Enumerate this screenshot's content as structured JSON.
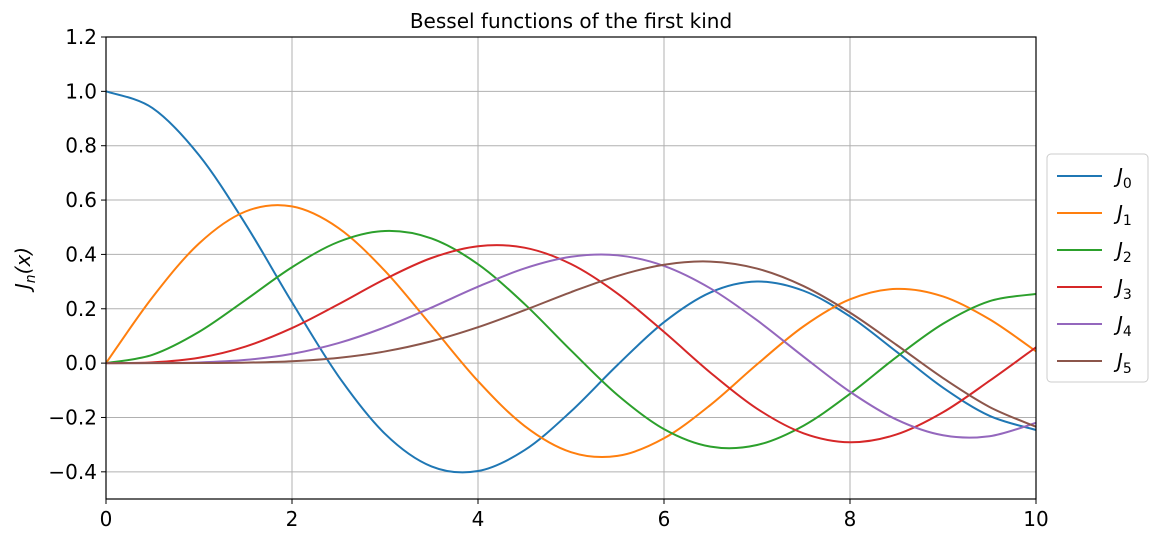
{
  "chart_data": {
    "type": "line",
    "title": "Bessel functions of the first kind",
    "xlabel": "",
    "ylabel": {
      "main": "J",
      "sub": "n",
      "suffix": "(x)"
    },
    "xlim": [
      0,
      10
    ],
    "ylim": [
      -0.5,
      1.2
    ],
    "xticks": [
      0,
      2,
      4,
      6,
      8,
      10
    ],
    "xtick_labels": [
      "0",
      "2",
      "4",
      "6",
      "8",
      "10"
    ],
    "yticks": [
      -0.4,
      -0.2,
      0.0,
      0.2,
      0.4,
      0.6,
      0.8,
      1.0,
      1.2
    ],
    "ytick_labels": [
      "−0.4",
      "−0.2",
      "0.0",
      "0.2",
      "0.4",
      "0.6",
      "0.8",
      "1.0",
      "1.2"
    ],
    "grid": true,
    "legend_position": "outside-right-center",
    "x": [
      0,
      0.5,
      1,
      1.5,
      2,
      2.5,
      3,
      3.5,
      4,
      4.5,
      5,
      5.5,
      6,
      6.5,
      7,
      7.5,
      8,
      8.5,
      9,
      9.5,
      10
    ],
    "series": [
      {
        "name": "J",
        "sub": "0",
        "color": "#1f77b4",
        "values": [
          1.0,
          0.9385,
          0.7652,
          0.5118,
          0.2239,
          -0.0484,
          -0.2601,
          -0.3801,
          -0.3971,
          -0.3205,
          -0.1776,
          -0.0068,
          0.1506,
          0.2601,
          0.3001,
          0.2663,
          0.1717,
          0.0419,
          -0.0903,
          -0.1939,
          -0.2459
        ]
      },
      {
        "name": "J",
        "sub": "1",
        "color": "#ff7f0e",
        "values": [
          0.0,
          0.2423,
          0.4401,
          0.5579,
          0.5767,
          0.4971,
          0.3391,
          0.1374,
          -0.066,
          -0.2311,
          -0.3276,
          -0.3414,
          -0.2767,
          -0.1538,
          -0.0047,
          0.1352,
          0.2346,
          0.2731,
          0.2453,
          0.1613,
          0.0435
        ]
      },
      {
        "name": "J",
        "sub": "2",
        "color": "#2ca02c",
        "values": [
          0.0,
          0.0306,
          0.1149,
          0.2321,
          0.3528,
          0.4461,
          0.4861,
          0.4586,
          0.3641,
          0.2178,
          0.0466,
          -0.1173,
          -0.2429,
          -0.3074,
          -0.3014,
          -0.2303,
          -0.113,
          0.0223,
          0.1448,
          0.2279,
          0.2546
        ]
      },
      {
        "name": "J",
        "sub": "3",
        "color": "#d62728",
        "values": [
          0.0,
          0.0026,
          0.0196,
          0.061,
          0.1289,
          0.2166,
          0.3091,
          0.3868,
          0.4302,
          0.4247,
          0.3648,
          0.2561,
          0.1148,
          -0.0353,
          -0.1676,
          -0.2581,
          -0.2911,
          -0.2626,
          -0.1809,
          -0.0653,
          0.0584
        ]
      },
      {
        "name": "J",
        "sub": "4",
        "color": "#9467bd",
        "values": [
          0.0,
          0.0002,
          0.0025,
          0.0118,
          0.034,
          0.0738,
          0.132,
          0.2044,
          0.2811,
          0.3484,
          0.3912,
          0.3967,
          0.3576,
          0.2748,
          0.1578,
          0.0238,
          -0.1054,
          -0.2077,
          -0.2655,
          -0.2691,
          -0.2196
        ]
      },
      {
        "name": "J",
        "sub": "5",
        "color": "#8c564b",
        "values": [
          0.0,
          0.0,
          0.0002,
          0.0018,
          0.007,
          0.0195,
          0.043,
          0.0804,
          0.1321,
          0.1947,
          0.2611,
          0.3209,
          0.3621,
          0.3736,
          0.3479,
          0.2835,
          0.1858,
          0.0671,
          -0.055,
          -0.1613,
          -0.2341
        ]
      }
    ]
  }
}
